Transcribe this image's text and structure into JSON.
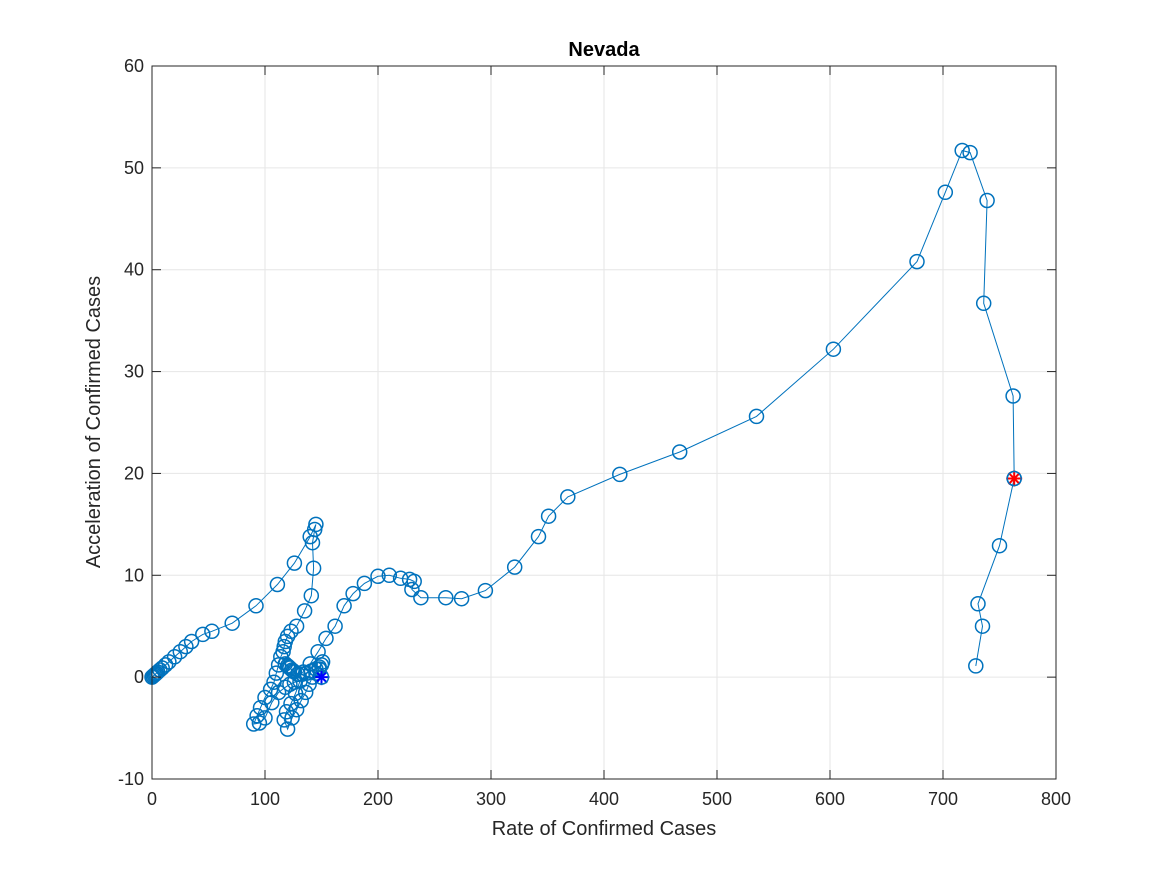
{
  "chart_data": {
    "type": "line",
    "title": "Nevada",
    "xlabel": "Rate of Confirmed Cases",
    "ylabel": "Acceleration of Confirmed Cases",
    "xlim": [
      0,
      800
    ],
    "ylim": [
      -10,
      60
    ],
    "xticks": [
      0,
      100,
      200,
      300,
      400,
      500,
      600,
      700,
      800
    ],
    "yticks": [
      -10,
      0,
      10,
      20,
      30,
      40,
      50,
      60
    ],
    "grid": true,
    "line_color": "#0072bd",
    "marker": "circle",
    "series": [
      {
        "x": [
          0,
          1,
          2,
          3,
          4,
          5,
          7,
          9,
          12,
          15,
          20,
          25,
          30,
          35,
          45,
          53,
          71,
          92,
          111,
          126,
          140,
          145,
          144,
          142,
          143,
          141,
          135,
          128,
          123,
          120,
          118,
          117,
          116,
          114,
          112,
          110,
          108,
          105,
          100,
          96,
          93,
          90,
          95,
          100,
          106,
          112,
          118,
          122,
          126,
          131,
          127,
          123,
          119,
          117,
          120,
          124,
          128,
          132,
          136,
          139,
          142,
          145,
          148,
          150,
          151,
          148,
          145,
          141,
          137,
          133,
          129,
          126,
          124,
          122,
          120,
          118,
          121,
          125,
          129,
          134,
          140,
          147,
          154,
          162,
          170,
          178,
          188,
          200,
          210,
          220,
          228,
          232,
          230,
          238,
          260,
          274,
          295,
          321,
          342,
          351,
          368,
          414,
          467,
          535,
          603,
          677,
          702,
          717,
          724,
          739,
          736,
          762,
          763,
          750,
          731,
          735,
          729
        ],
        "y": [
          0,
          0.1,
          0.2,
          0.3,
          0.4,
          0.5,
          0.7,
          0.9,
          1.2,
          1.5,
          2.0,
          2.5,
          3.0,
          3.5,
          4.2,
          4.5,
          5.3,
          7.0,
          9.1,
          11.2,
          13.8,
          15.0,
          14.5,
          13.2,
          10.7,
          8.0,
          6.5,
          5.0,
          4.5,
          4.0,
          3.5,
          3.0,
          2.5,
          2.0,
          1.2,
          0.4,
          -0.5,
          -1.2,
          -2.0,
          -3.0,
          -3.8,
          -4.6,
          -4.5,
          -4.0,
          -2.5,
          -1.5,
          -1.0,
          -0.7,
          -0.5,
          -0.4,
          -1.6,
          -2.6,
          -3.4,
          -4.2,
          -5.1,
          -4.0,
          -3.2,
          -2.3,
          -1.5,
          -0.7,
          0.0,
          0.4,
          0.8,
          1.2,
          1.5,
          1.0,
          0.8,
          0.6,
          0.4,
          0.3,
          0.3,
          0.5,
          0.7,
          0.9,
          1.1,
          1.3,
          1.0,
          0.6,
          0.3,
          0.5,
          1.3,
          2.5,
          3.8,
          5.0,
          7.0,
          8.2,
          9.2,
          9.9,
          10.0,
          9.7,
          9.6,
          9.4,
          8.6,
          7.8,
          7.8,
          7.7,
          8.5,
          10.8,
          13.8,
          15.8,
          17.7,
          19.9,
          22.1,
          25.6,
          32.2,
          40.8,
          47.6,
          51.7,
          51.5,
          46.8,
          36.7,
          27.6,
          19.5,
          12.9,
          7.2,
          5.0,
          1.1
        ]
      }
    ],
    "start_marker": {
      "x": 150,
      "y": 0,
      "color": "#0000ff",
      "marker": "asterisk"
    },
    "end_marker": {
      "x": 763,
      "y": 19.5,
      "color": "#ff0000",
      "marker": "asterisk"
    }
  }
}
